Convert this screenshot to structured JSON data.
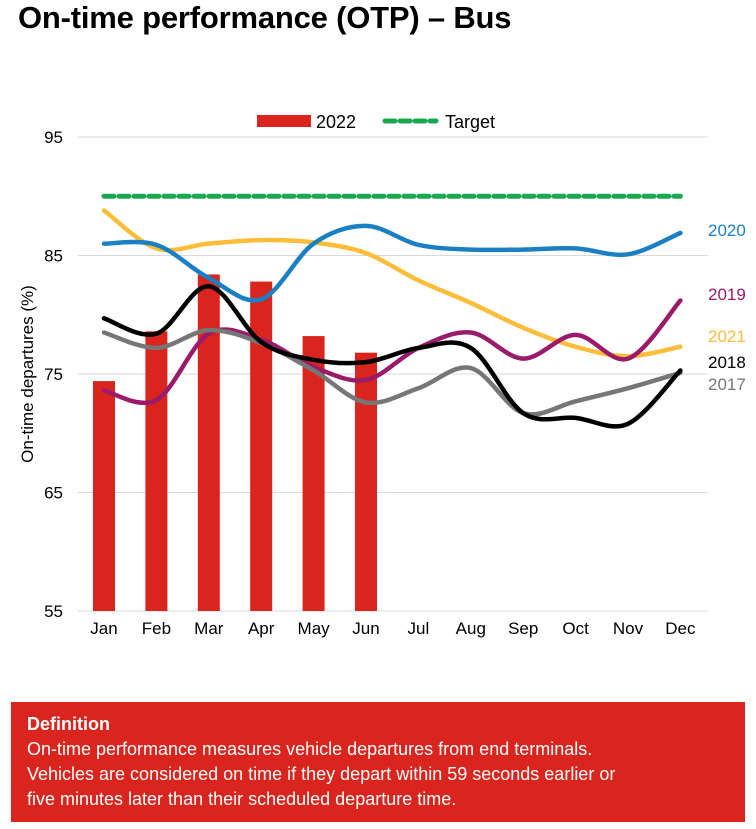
{
  "title": "On-time performance (OTP) – Bus",
  "colors": {
    "bar": "#d9251d",
    "target": "#18a84f",
    "2017": "#767676",
    "2018": "#000000",
    "2019": "#9b1b6b",
    "2020": "#1b7fc4",
    "2021": "#fbbd3a"
  },
  "chart_data": {
    "type": "bar",
    "title": "On-time performance (OTP) – Bus",
    "xlabel": "",
    "ylabel": "On-time departures (%)",
    "ylim": [
      55,
      95
    ],
    "yticks": [
      55,
      65,
      75,
      85,
      95
    ],
    "grid": true,
    "legend_position": "top-center",
    "legend": [
      {
        "label": "2022",
        "kind": "bar"
      },
      {
        "label": "Target",
        "kind": "dashed-line"
      }
    ],
    "categories": [
      "Jan",
      "Feb",
      "Mar",
      "Apr",
      "May",
      "Jun",
      "Jul",
      "Aug",
      "Sep",
      "Oct",
      "Nov",
      "Dec"
    ],
    "bars": {
      "name": "2022",
      "values": [
        74.4,
        78.6,
        83.4,
        82.8,
        78.2,
        76.8,
        null,
        null,
        null,
        null,
        null,
        null
      ]
    },
    "target": {
      "name": "Target",
      "value": 90
    },
    "series": [
      {
        "name": "2020",
        "label_position": "right",
        "values": [
          86.0,
          85.9,
          83.1,
          81.3,
          86.0,
          87.5,
          85.9,
          85.5,
          85.5,
          85.6,
          85.1,
          86.9
        ]
      },
      {
        "name": "2019",
        "label_position": "right",
        "values": [
          73.6,
          72.8,
          78.4,
          77.9,
          75.6,
          74.5,
          77.2,
          78.5,
          76.3,
          78.3,
          76.3,
          81.2
        ]
      },
      {
        "name": "2021",
        "label_position": "right",
        "values": [
          88.8,
          85.6,
          86.0,
          86.3,
          86.1,
          85.2,
          82.9,
          81.0,
          78.9,
          77.3,
          76.5,
          77.3
        ]
      },
      {
        "name": "2018",
        "label_position": "right",
        "values": [
          79.7,
          78.4,
          82.4,
          77.7,
          76.2,
          76.0,
          77.2,
          77.2,
          71.7,
          71.3,
          70.8,
          75.3
        ]
      },
      {
        "name": "2017",
        "label_position": "right",
        "values": [
          78.5,
          77.2,
          78.7,
          77.6,
          75.3,
          72.6,
          73.8,
          75.5,
          71.7,
          72.7,
          73.8,
          75.1
        ]
      }
    ]
  },
  "definition": {
    "heading": "Definition",
    "lines": [
      "On-time performance measures vehicle departures from end terminals.",
      "Vehicles are considered on time if they depart within 59 seconds earlier or",
      "five minutes later than their scheduled departure time."
    ]
  }
}
